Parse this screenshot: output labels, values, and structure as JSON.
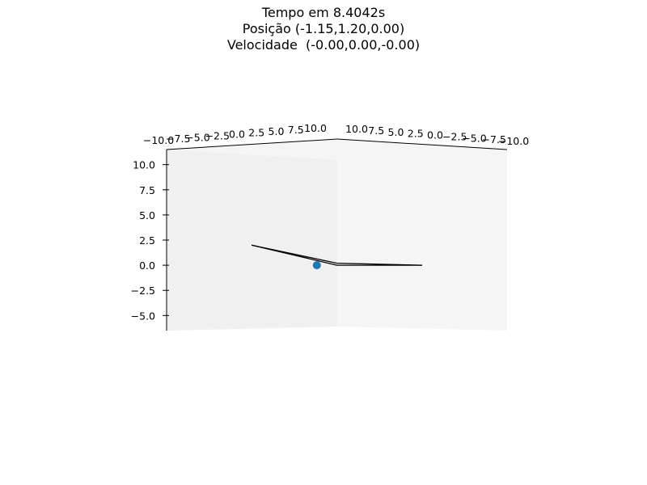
{
  "title": {
    "line1": "Tempo em 8.4042s",
    "line2": "Posição (-1.15,1.20,0.00)",
    "line3": "Velocidade  (-0.00,0.00,-0.00)"
  },
  "chart_data": {
    "type": "line3d",
    "title": "Tempo em 8.4042s\nPosição (-1.15,1.20,0.00)\nVelocidade  (-0.00,0.00,-0.00)",
    "x_ticks": [
      "−10.0",
      "−7.5",
      "−5.0",
      "−2.5",
      "0.0",
      "2.5",
      "5.0",
      "7.5",
      "10.0"
    ],
    "y_ticks": [
      "10.0",
      "7.5",
      "5.0",
      "2.5",
      "0.0",
      "−2.5",
      "−5.0",
      "−7.5",
      "−10.0"
    ],
    "z_ticks": [
      "10.0",
      "7.5",
      "5.0",
      "2.5",
      "0.0",
      "−2.5",
      "−5.0"
    ],
    "xlim": [
      -10,
      10
    ],
    "ylim": [
      -10,
      10
    ],
    "zlim": [
      -6.5,
      11.5
    ],
    "series": [
      {
        "type": "line",
        "x": [
          -10,
          0,
          10
        ],
        "y": [
          0,
          0,
          0
        ],
        "z": [
          2.0,
          0.0,
          0.0
        ],
        "color": "#000000"
      },
      {
        "type": "line",
        "x": [
          -10,
          0,
          10
        ],
        "y": [
          0,
          0,
          0
        ],
        "z": [
          2.0,
          0.2,
          0.0
        ],
        "color": "#000000"
      }
    ],
    "point": {
      "x": -1.15,
      "y": 1.2,
      "z": 0.0,
      "color": "#1f77b4"
    },
    "grid": false
  }
}
